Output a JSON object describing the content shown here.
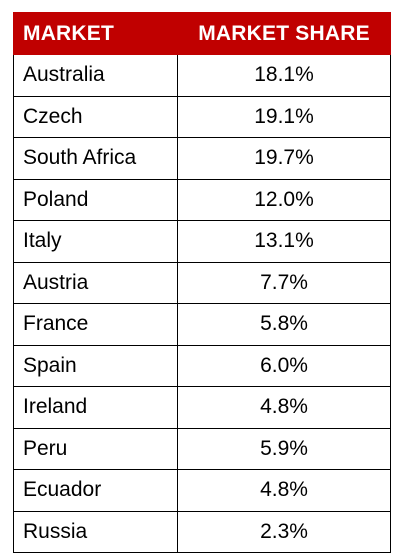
{
  "table": {
    "headers": {
      "market": "MARKET",
      "market_share": "MARKET SHARE"
    },
    "rows": [
      {
        "market": "Australia",
        "share": "18.1%"
      },
      {
        "market": "Czech",
        "share": "19.1%"
      },
      {
        "market": "South Africa",
        "share": "19.7%"
      },
      {
        "market": "Poland",
        "share": "12.0%"
      },
      {
        "market": "Italy",
        "share": "13.1%"
      },
      {
        "market": "Austria",
        "share": "7.7%"
      },
      {
        "market": "France",
        "share": "5.8%"
      },
      {
        "market": "Spain",
        "share": "6.0%"
      },
      {
        "market": "Ireland",
        "share": "4.8%"
      },
      {
        "market": "Peru",
        "share": "5.9%"
      },
      {
        "market": "Ecuador",
        "share": "4.8%"
      },
      {
        "market": "Russia",
        "share": "2.3%"
      }
    ],
    "colors": {
      "header_background": "#c00000",
      "header_text": "#ffffff",
      "border": "#000000"
    }
  }
}
